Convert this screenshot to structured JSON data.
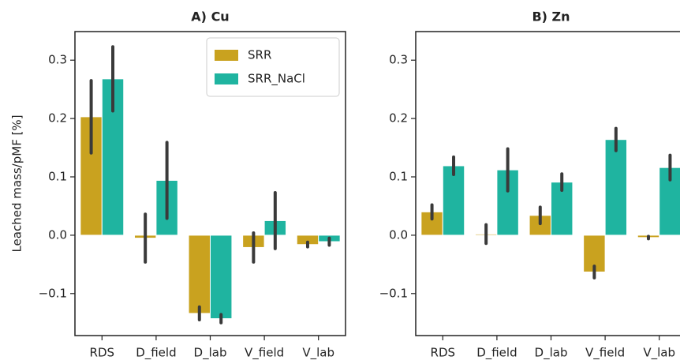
{
  "chart_data": [
    {
      "type": "bar",
      "title": "A) Cu",
      "y_label": "Leached mass/pMF [%]",
      "legend": "upper right",
      "categories": [
        "RDS",
        "D_field",
        "D_lab",
        "V_field",
        "V_lab"
      ],
      "series": [
        {
          "name": "SRR",
          "color": "#c9a21f",
          "values": [
            0.203,
            -0.005,
            -0.134,
            -0.021,
            -0.016
          ],
          "errors": [
            0.062,
            0.041,
            0.011,
            0.025,
            0.004
          ]
        },
        {
          "name": "SRR_NaCl",
          "color": "#1fb4a0",
          "values": [
            0.268,
            0.094,
            -0.143,
            0.025,
            -0.011
          ],
          "errors": [
            0.055,
            0.065,
            0.007,
            0.048,
            0.006
          ]
        }
      ],
      "ylim": [
        -0.172,
        0.349
      ],
      "yticks": [
        {
          "value": -0.1,
          "label": "−0.1"
        },
        {
          "value": 0,
          "label": "0.0"
        },
        0.1,
        0.2,
        0.3
      ]
    },
    {
      "type": "bar",
      "title": "B) Zn",
      "categories": [
        "RDS",
        "D_field",
        "D_lab",
        "V_field",
        "V_lab"
      ],
      "series": [
        {
          "color": "#c9a21f",
          "values": [
            0.04,
            0.002,
            0.034,
            -0.063,
            -0.004
          ],
          "errors": [
            0.012,
            0.016,
            0.014,
            0.01,
            0.002
          ]
        },
        {
          "color": "#1fb4a0",
          "values": [
            0.119,
            0.112,
            0.091,
            0.164,
            0.116
          ],
          "errors": [
            0.015,
            0.036,
            0.014,
            0.019,
            0.021
          ]
        }
      ],
      "ylim": [
        -0.172,
        0.349
      ],
      "yticks": [
        {
          "value": -0.1,
          "label": "−0.1"
        },
        {
          "value": 0,
          "label": "0.0"
        },
        0.1,
        0.2,
        0.3
      ]
    }
  ]
}
